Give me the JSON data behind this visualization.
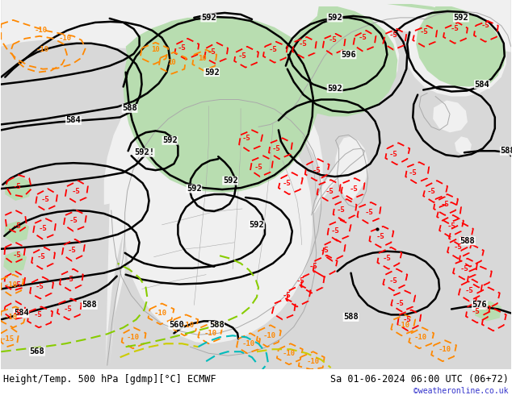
{
  "title_left": "Height/Temp. 500 hPa [gdmp][°C] ECMWF",
  "title_right": "Sa 01-06-2024 06:00 UTC (06+72)",
  "watermark": "©weatheronline.co.uk",
  "bg_ocean": "#d8d8d8",
  "bg_land": "#f0f0f0",
  "green_fill": "#b8ddb0",
  "z500_color": "#000000",
  "temp_neg5_color": "#ff0000",
  "temp_neg10_color": "#ff8800",
  "temp_pos_color": "#ff8800",
  "z850_green_color": "#88cc00",
  "z850_cyan_color": "#00bbbb",
  "border_color": "#aaaaaa",
  "watermark_color": "#3333cc",
  "title_fontsize": 8.5,
  "watermark_fontsize": 7
}
